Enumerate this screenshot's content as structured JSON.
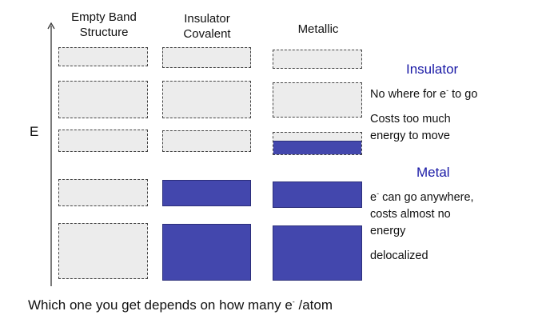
{
  "axis": {
    "label": "E"
  },
  "columns": [
    {
      "title_line1": "Empty Band",
      "title_line2": "Structure"
    },
    {
      "title_line1": "Insulator",
      "title_line2": "Covalent"
    },
    {
      "title_line1": "Metallic",
      "title_line2": ""
    }
  ],
  "bands": [
    {
      "empty": "empty",
      "insulator": "empty",
      "metallic": "empty"
    },
    {
      "empty": "empty",
      "insulator": "empty",
      "metallic": "empty"
    },
    {
      "empty": "empty",
      "insulator": "empty",
      "metallic": "partially-filled"
    },
    {
      "empty": "empty",
      "insulator": "filled",
      "metallic": "filled"
    },
    {
      "empty": "empty",
      "insulator": "filled",
      "metallic": "filled"
    }
  ],
  "metallic_partial_fill_fraction": 0.6,
  "insulator": {
    "heading": "Insulator",
    "line1_pre": "No where for e",
    "line1_sup": "-",
    "line1_post": " to go",
    "line2": "Costs too much",
    "line3": "energy to move"
  },
  "metal": {
    "heading": "Metal",
    "line1_pre": "e",
    "line1_sup": "-",
    "line1_post": " can go anywhere,",
    "line2": "costs almost no",
    "line3": "energy",
    "line4": "delocalized"
  },
  "footer": {
    "pre": "Which one you get depends on how many e",
    "sup": "-",
    "post": " /atom"
  },
  "colors": {
    "filled_band": "#4347ad",
    "empty_band": "#ececec",
    "heading": "#1a1aa6"
  }
}
